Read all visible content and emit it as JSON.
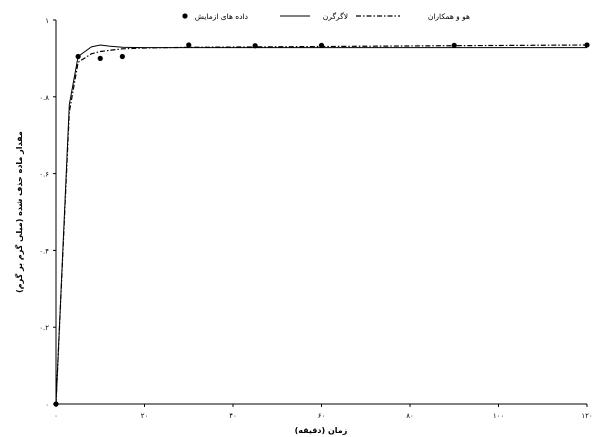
{
  "chart_data": {
    "type": "line",
    "xlabel": "زمان (دقیقه)",
    "ylabel": "مقدار ماده حذف شده (میلی گرم بر گرم)",
    "xlim": [
      0,
      120
    ],
    "ylim": [
      0,
      1
    ],
    "x_ticks": [
      0,
      20,
      40,
      60,
      80,
      100,
      120
    ],
    "x_tick_labels": [
      "۰",
      "۲۰",
      "۴۰",
      "۶۰",
      "۸۰",
      "۱۰۰",
      "۱۲۰"
    ],
    "y_ticks": [
      0,
      0.2,
      0.4,
      0.6,
      0.8,
      1
    ],
    "y_tick_labels": [
      "۰",
      "۰.۲",
      "۰.۴",
      "۰.۶",
      "۰.۸",
      "۱"
    ],
    "grid": false,
    "legend": {
      "placement": "top",
      "entries": [
        "داده های ازمایش",
        "لاگرگرن",
        "هو و همکاران"
      ]
    },
    "series": [
      {
        "name": "داده های ازمایش",
        "style": "marker",
        "color": "#000000",
        "x": [
          0,
          5,
          10,
          15,
          30,
          45,
          60,
          90,
          120
        ],
        "y": [
          0,
          0.905,
          0.9,
          0.905,
          0.935,
          0.933,
          0.934,
          0.934,
          0.935
        ]
      },
      {
        "name": "لاگرگرن",
        "style": "solid",
        "color": "#000000",
        "x": [
          0,
          3,
          5,
          8,
          10,
          12,
          15,
          20,
          30,
          60,
          90,
          120
        ],
        "y": [
          0,
          0.78,
          0.905,
          0.93,
          0.935,
          0.932,
          0.929,
          0.928,
          0.928,
          0.928,
          0.928,
          0.928
        ]
      },
      {
        "name": "هو و همکاران",
        "style": "dash-dot",
        "color": "#000000",
        "x": [
          0,
          3,
          5,
          8,
          10,
          15,
          20,
          30,
          60,
          90,
          120
        ],
        "y": [
          0,
          0.76,
          0.89,
          0.912,
          0.918,
          0.925,
          0.927,
          0.929,
          0.931,
          0.933,
          0.935
        ]
      }
    ]
  }
}
